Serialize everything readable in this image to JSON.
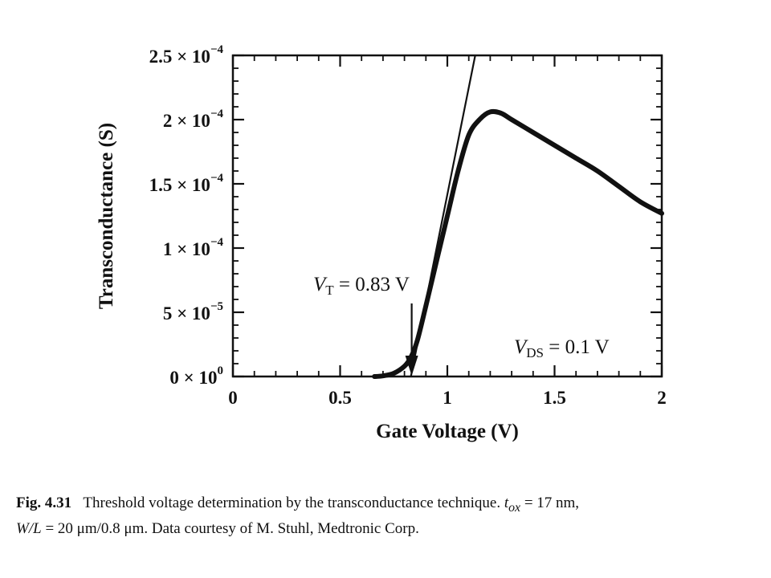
{
  "chart_data": {
    "type": "line",
    "xlabel": "Gate Voltage (V)",
    "ylabel": "Transconductance (S)",
    "xlim": [
      0,
      2
    ],
    "ylim": [
      0,
      0.00025
    ],
    "x_ticks": [
      0,
      0.5,
      1,
      1.5,
      2
    ],
    "x_tick_labels": [
      "0",
      "0.5",
      "1",
      "1.5",
      "2"
    ],
    "y_ticks": [
      0,
      5e-05,
      0.0001,
      0.00015,
      0.0002,
      0.00025
    ],
    "y_tick_labels": [
      {
        "mantissa": "0 × 10",
        "exp": "0"
      },
      {
        "mantissa": "5 × 10",
        "exp": "−5"
      },
      {
        "mantissa": "1 × 10",
        "exp": "−4"
      },
      {
        "mantissa": "1.5 × 10",
        "exp": "−4"
      },
      {
        "mantissa": "2 × 10",
        "exp": "−4"
      },
      {
        "mantissa": "2.5 × 10",
        "exp": "−4"
      }
    ],
    "grid": false,
    "series": [
      {
        "values": [
          [
            0.66,
            0
          ],
          [
            0.7,
            5e-07
          ],
          [
            0.75,
            2.5e-06
          ],
          [
            0.8,
            8e-06
          ],
          [
            0.83,
            1.5e-05
          ],
          [
            0.86,
            2.8e-05
          ],
          [
            0.9,
            5.5e-05
          ],
          [
            0.95,
            9e-05
          ],
          [
            1.0,
            0.000125
          ],
          [
            1.05,
            0.00016
          ],
          [
            1.1,
            0.000188
          ],
          [
            1.15,
            0.0002
          ],
          [
            1.2,
            0.000206
          ],
          [
            1.25,
            0.000205
          ],
          [
            1.3,
            0.0002
          ],
          [
            1.4,
            0.00019
          ],
          [
            1.5,
            0.00018
          ],
          [
            1.6,
            0.00017
          ],
          [
            1.7,
            0.00016
          ],
          [
            1.8,
            0.000148
          ],
          [
            1.9,
            0.000136
          ],
          [
            2.0,
            0.000127
          ]
        ]
      }
    ],
    "tangent_line": {
      "x": [
        0.83,
        1.13
      ],
      "y": [
        0,
        0.00025
      ]
    },
    "annotations": {
      "vt": {
        "prefix": "V",
        "sub": "T",
        "text": " = 0.83 V",
        "arrow_x": 0.83
      },
      "vds": {
        "prefix": "V",
        "sub": "DS",
        "text": " = 0.1 V"
      }
    }
  },
  "caption": {
    "fig_label": "Fig. 4.31",
    "line1_text": "Threshold voltage determination by the transconductance technique. ",
    "tox_symbol": "t",
    "tox_sub": "ox",
    "tox_value": " = 17 nm,",
    "line2_wl": "W/L",
    "line2_text": " = 20 μm/0.8 μm. Data courtesy of M. Stuhl, Medtronic Corp."
  }
}
